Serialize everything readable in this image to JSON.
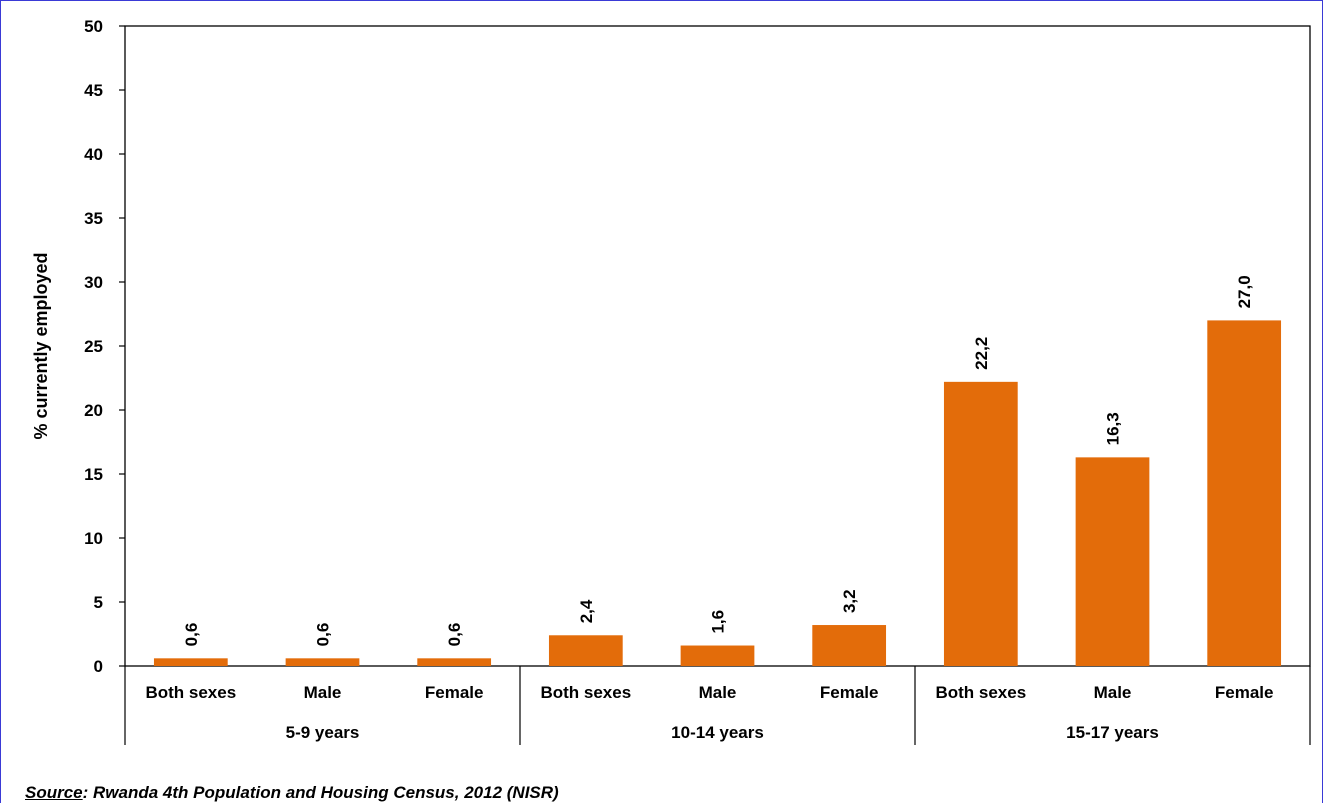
{
  "chart_data": {
    "type": "bar",
    "ylabel": "% currently employed",
    "ylim": [
      0,
      50
    ],
    "yticks": [
      0,
      5,
      10,
      15,
      20,
      25,
      30,
      35,
      40,
      45,
      50
    ],
    "grid": false,
    "groups": [
      {
        "label": "5-9 years",
        "categories": [
          "Both sexes",
          "Male",
          "Female"
        ],
        "values": [
          0.6,
          0.6,
          0.6
        ],
        "value_labels": [
          "0,6",
          "0,6",
          "0,6"
        ]
      },
      {
        "label": "10-14 years",
        "categories": [
          "Both sexes",
          "Male",
          "Female"
        ],
        "values": [
          2.4,
          1.6,
          3.2
        ],
        "value_labels": [
          "2,4",
          "1,6",
          "3,2"
        ]
      },
      {
        "label": "15-17 years",
        "categories": [
          "Both sexes",
          "Male",
          "Female"
        ],
        "values": [
          22.2,
          16.3,
          27.0
        ],
        "value_labels": [
          "22,2",
          "16,3",
          "27,0"
        ]
      }
    ],
    "bar_color": "#E36C0A"
  },
  "source": {
    "prefix": "Source",
    "text": ": Rwanda 4th Population and Housing Census, 2012 (NISR)"
  }
}
